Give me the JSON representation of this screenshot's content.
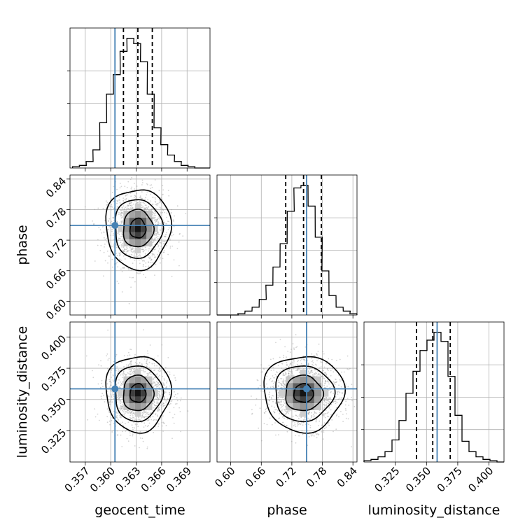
{
  "chart_data": {
    "type": "corner",
    "parameters": [
      "geocent_time",
      "phase",
      "luminosity_distance"
    ],
    "truth": {
      "geocent_time": 0.3605,
      "phase": 0.749,
      "luminosity_distance": 0.3585,
      "color": "#4682b4"
    },
    "quantiles": {
      "geocent_time": [
        0.3615,
        0.3632,
        0.3649
      ],
      "phase": [
        0.708,
        0.743,
        0.778
      ],
      "luminosity_distance": [
        0.342,
        0.355,
        0.369
      ]
    },
    "ranges": {
      "geocent_time": [
        0.3552,
        0.3717
      ],
      "phase": [
        0.573,
        0.848
      ],
      "luminosity_distance": [
        0.3,
        0.412
      ]
    },
    "ticks": {
      "geocent_time": [
        0.357,
        0.36,
        0.363,
        0.366,
        0.369
      ],
      "phase": [
        0.6,
        0.66,
        0.72,
        0.78,
        0.84
      ],
      "luminosity_distance": [
        0.325,
        0.35,
        0.375,
        0.4
      ]
    },
    "tick_labels": {
      "geocent_time": [
        "0.357",
        "0.360",
        "0.363",
        "0.366",
        "0.369"
      ],
      "phase": [
        "0.60",
        "0.66",
        "0.72",
        "0.78",
        "0.84"
      ],
      "luminosity_distance": [
        "0.325",
        "0.350",
        "0.375",
        "0.400"
      ]
    },
    "marginals": {
      "geocent_time": {
        "bins": [
          0.3555,
          0.3563,
          0.3571,
          0.3579,
          0.3587,
          0.3595,
          0.3603,
          0.3611,
          0.3619,
          0.3627,
          0.3635,
          0.3643,
          0.3651,
          0.3659,
          0.3667,
          0.3675,
          0.3683,
          0.3691,
          0.3699,
          0.3707
        ],
        "counts": [
          0.01,
          0.02,
          0.05,
          0.14,
          0.35,
          0.57,
          0.72,
          0.9,
          1.0,
          0.96,
          0.82,
          0.57,
          0.31,
          0.18,
          0.1,
          0.05,
          0.02,
          0.01,
          0,
          0
        ]
      },
      "phase": {
        "bins": [
          0.573,
          0.587,
          0.601,
          0.614,
          0.628,
          0.642,
          0.656,
          0.669,
          0.683,
          0.697,
          0.711,
          0.724,
          0.738,
          0.752,
          0.766,
          0.779,
          0.793,
          0.807,
          0.821,
          0.834
        ],
        "counts": [
          0,
          0,
          0,
          0.01,
          0.03,
          0.06,
          0.12,
          0.23,
          0.37,
          0.55,
          0.8,
          0.98,
          1.0,
          0.84,
          0.6,
          0.34,
          0.15,
          0.06,
          0.03,
          0.01
        ]
      },
      "luminosity_distance": {
        "bins": [
          0.3,
          0.3056,
          0.3112,
          0.3168,
          0.3224,
          0.328,
          0.3336,
          0.3392,
          0.3448,
          0.3504,
          0.356,
          0.3616,
          0.3672,
          0.3728,
          0.3784,
          0.384,
          0.3896,
          0.3952,
          0.4008,
          0.4064
        ],
        "counts": [
          0.01,
          0.02,
          0.04,
          0.08,
          0.17,
          0.32,
          0.53,
          0.7,
          0.86,
          0.94,
          1.0,
          0.93,
          0.66,
          0.36,
          0.16,
          0.08,
          0.04,
          0.02,
          0.01,
          0
        ]
      }
    },
    "grid": true,
    "style": {
      "hist_color": "#000000",
      "quantile_line": "dashed",
      "scatter_color": "#9e9e9e",
      "contour_color": "#000000"
    }
  }
}
